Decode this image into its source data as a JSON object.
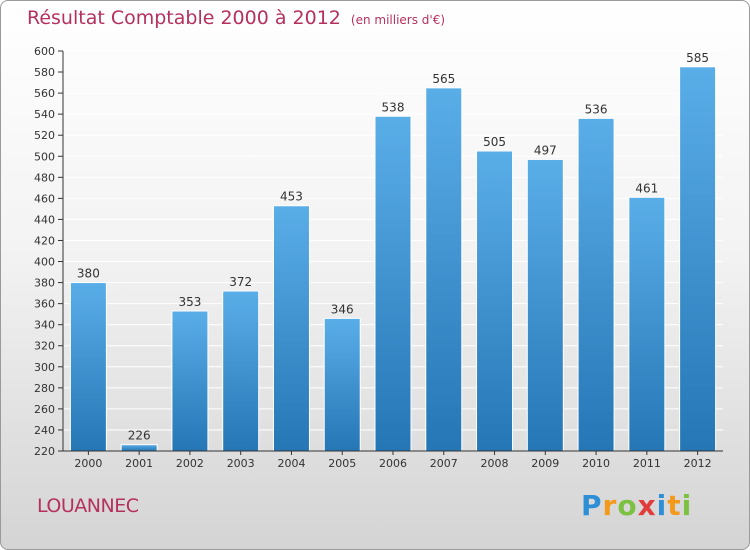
{
  "title": "Résultat Comptable 2000 à 2012",
  "subtitle": "(en milliers d'€)",
  "commune": "LOUANNEC",
  "logo": {
    "p": "P",
    "r": "r",
    "o": "o",
    "x": "x",
    "i1": "i",
    "t": "t",
    "i2": "i"
  },
  "colors": {
    "title": "#b5305f",
    "bar_top": "#5aaee8",
    "bar_bottom": "#2576b5",
    "grid": "#ffffff"
  },
  "chart_data": {
    "type": "bar",
    "title": "Résultat Comptable 2000 à 2012",
    "xlabel": "",
    "ylabel": "",
    "categories": [
      "2000",
      "2001",
      "2002",
      "2003",
      "2004",
      "2005",
      "2006",
      "2007",
      "2008",
      "2009",
      "2010",
      "2011",
      "2012"
    ],
    "values": [
      380,
      226,
      353,
      372,
      453,
      346,
      538,
      565,
      505,
      497,
      536,
      461,
      585
    ],
    "ylim": [
      220,
      600
    ],
    "yticks": [
      220,
      240,
      260,
      280,
      300,
      320,
      340,
      360,
      380,
      400,
      420,
      440,
      460,
      480,
      500,
      520,
      540,
      560,
      580,
      600
    ],
    "grid": true,
    "data_labels": true
  }
}
